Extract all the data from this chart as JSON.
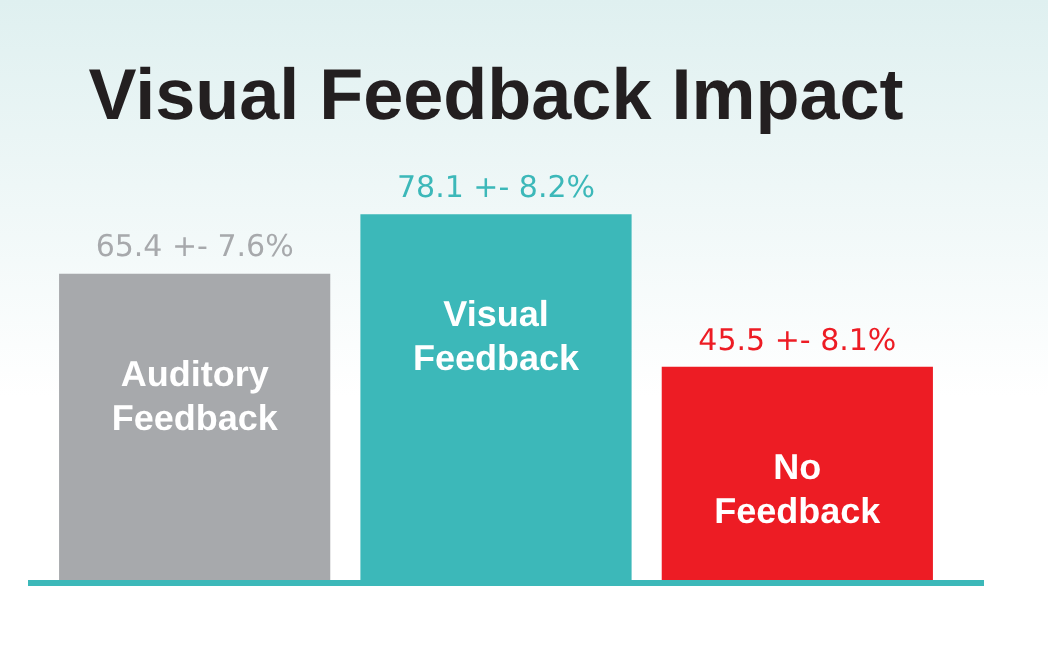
{
  "chart_data": {
    "type": "bar",
    "title": "Visual Feedback Impact",
    "categories": [
      "Auditory Feedback",
      "Visual Feedback",
      "No Feedback"
    ],
    "values": [
      65.4,
      78.1,
      45.5
    ],
    "value_labels": [
      "65.4 +- 7.6%",
      "78.1 +- 8.2%",
      "45.5 +- 8.1%"
    ],
    "colors": [
      "#a7a9ac",
      "#3cb8b9",
      "#ed1c24"
    ],
    "legend": false
  }
}
